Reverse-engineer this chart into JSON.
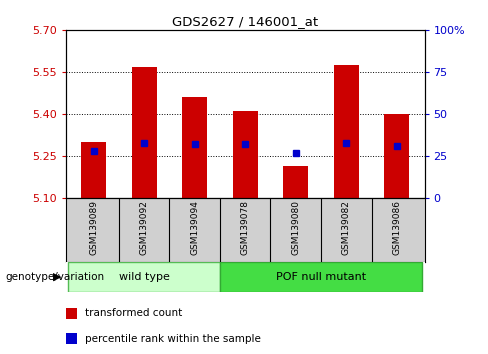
{
  "title": "GDS2627 / 146001_at",
  "samples": [
    "GSM139089",
    "GSM139092",
    "GSM139094",
    "GSM139078",
    "GSM139080",
    "GSM139082",
    "GSM139086"
  ],
  "transformed_counts": [
    5.3,
    5.57,
    5.46,
    5.41,
    5.215,
    5.575,
    5.4
  ],
  "percentile_ranks": [
    28,
    33,
    32,
    32,
    27,
    33,
    31
  ],
  "ylim": [
    5.1,
    5.7
  ],
  "yticks": [
    5.1,
    5.25,
    5.4,
    5.55,
    5.7
  ],
  "right_yticks": [
    0,
    25,
    50,
    75,
    100
  ],
  "right_ytick_labels": [
    "0",
    "25",
    "50",
    "75",
    "100%"
  ],
  "bar_color": "#cc0000",
  "dot_color": "#0000cc",
  "bar_width": 0.5,
  "group_defs": [
    {
      "indices": [
        0,
        1,
        2
      ],
      "label": "wild type",
      "bg": "#ccffcc",
      "border": "#55bb55"
    },
    {
      "indices": [
        3,
        4,
        5,
        6
      ],
      "label": "POF null mutant",
      "bg": "#44dd44",
      "border": "#33aa33"
    }
  ],
  "genotype_label": "genotype/variation",
  "legend_items": [
    {
      "label": "transformed count",
      "color": "#cc0000"
    },
    {
      "label": "percentile rank within the sample",
      "color": "#0000cc"
    }
  ],
  "ax_bg": "#ffffff",
  "left_tick_color": "#cc0000",
  "right_tick_color": "#0000cc",
  "sample_box_color": "#d0d0d0",
  "grid_yticks": [
    5.25,
    5.4,
    5.55
  ]
}
